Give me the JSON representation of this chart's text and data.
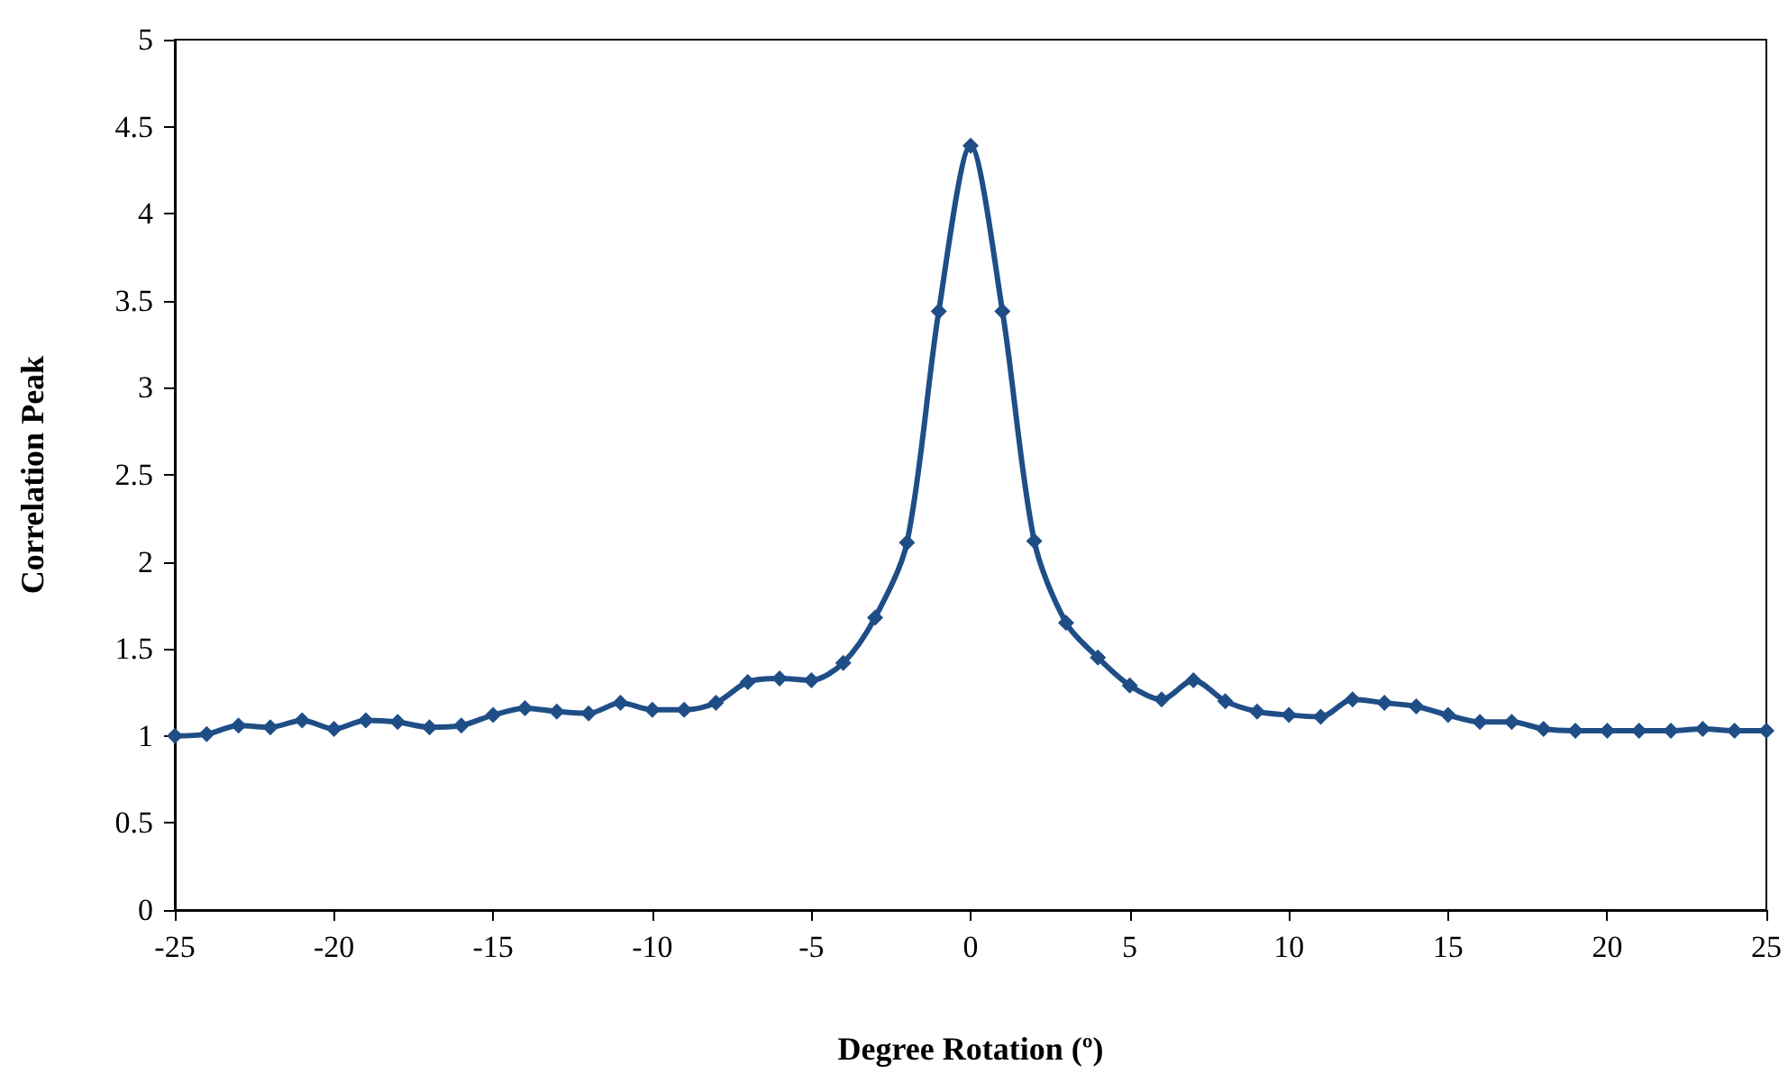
{
  "chart_data": {
    "type": "line",
    "xlabel": "Degree Rotation (º)",
    "ylabel": "Correlation Peak",
    "x": [
      -25,
      -24,
      -23,
      -22,
      -21,
      -20,
      -19,
      -18,
      -17,
      -16,
      -15,
      -14,
      -13,
      -12,
      -11,
      -10,
      -9,
      -8,
      -7,
      -6,
      -5,
      -4,
      -3,
      -2,
      -1,
      0,
      1,
      2,
      3,
      4,
      5,
      6,
      7,
      8,
      9,
      10,
      11,
      12,
      13,
      14,
      15,
      16,
      17,
      18,
      19,
      20,
      21,
      22,
      23,
      24,
      25
    ],
    "series": [
      {
        "color": "#1f4e87",
        "values": [
          1.0,
          1.01,
          1.06,
          1.05,
          1.09,
          1.04,
          1.09,
          1.08,
          1.05,
          1.06,
          1.12,
          1.16,
          1.14,
          1.13,
          1.19,
          1.15,
          1.15,
          1.19,
          1.31,
          1.33,
          1.32,
          1.42,
          1.68,
          2.11,
          3.44,
          4.39,
          3.44,
          2.12,
          1.65,
          1.45,
          1.29,
          1.21,
          1.32,
          1.2,
          1.14,
          1.12,
          1.11,
          1.21,
          1.19,
          1.17,
          1.12,
          1.08,
          1.08,
          1.04,
          1.03,
          1.03,
          1.03,
          1.03,
          1.04,
          1.03,
          1.03
        ]
      }
    ],
    "xlim": [
      -25,
      25
    ],
    "xticks": [
      -25,
      -20,
      -15,
      -10,
      -5,
      0,
      5,
      10,
      15,
      20,
      25
    ],
    "ylim": [
      0,
      5
    ],
    "yticks": [
      0,
      0.5,
      1,
      1.5,
      2,
      2.5,
      3,
      3.5,
      4,
      4.5,
      5
    ],
    "grid": false,
    "marker": "diamond",
    "line_style": "solid"
  }
}
